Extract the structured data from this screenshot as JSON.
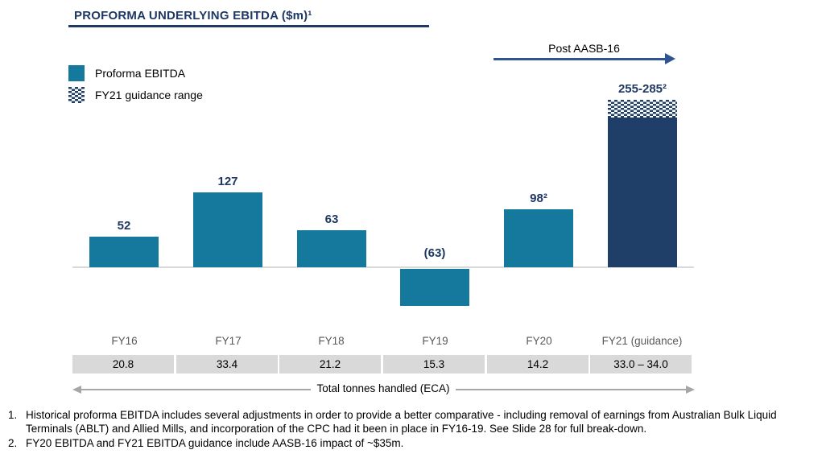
{
  "title": "PROFORMA UNDERLYING EBITDA ($m)¹",
  "legend": {
    "items": [
      {
        "label": "Proforma EBITDA",
        "swatch": "teal-solid"
      },
      {
        "label": "FY21 guidance range",
        "swatch": "navy-hatched"
      }
    ]
  },
  "post_aasb": {
    "label": "Post AASB-16"
  },
  "chart_data": {
    "type": "bar",
    "title": "PROFORMA UNDERLYING EBITDA ($m)",
    "unit": "$m",
    "categories": [
      "FY16",
      "FY17",
      "FY18",
      "FY19",
      "FY20",
      "FY21 (guidance)"
    ],
    "values": [
      52,
      127,
      63,
      -63,
      98,
      null
    ],
    "value_labels": [
      "52",
      "127",
      "63",
      "(63)",
      "98²",
      "255-285²"
    ],
    "fy21_guidance_range": [
      255,
      285
    ],
    "legend_entries": [
      "Proforma EBITDA",
      "FY21 guidance range"
    ],
    "annotation": "Post AASB-16",
    "gridlines": false,
    "secondary_table": {
      "label": "Total tonnes handled (ECA)",
      "values": [
        "20.8",
        "33.4",
        "21.2",
        "15.3",
        "14.2",
        "33.0 – 34.0"
      ]
    }
  },
  "footnotes": [
    {
      "marker": "1.",
      "text": "Historical proforma EBITDA includes several adjustments in order to provide a better comparative - including removal of earnings from Australian Bulk Liquid Terminals (ABLT) and Allied Mills, and incorporation of the CPC had it been in place in FY16-19. See Slide 28 for full break-down."
    },
    {
      "marker": "2.",
      "text": "FY20 EBITDA and FY21 EBITDA guidance include AASB-16 impact of ~$35m."
    }
  ],
  "colors": {
    "teal": "#15799E",
    "navy": "#1F3F68",
    "text_navy": "#1F3864",
    "arrow_navy": "#2E5493",
    "cell_gray": "#D9D9D9",
    "axis_gray": "#D9D9D9",
    "header_gray": "#595959",
    "gray_arrow": "#A6A6A6"
  }
}
